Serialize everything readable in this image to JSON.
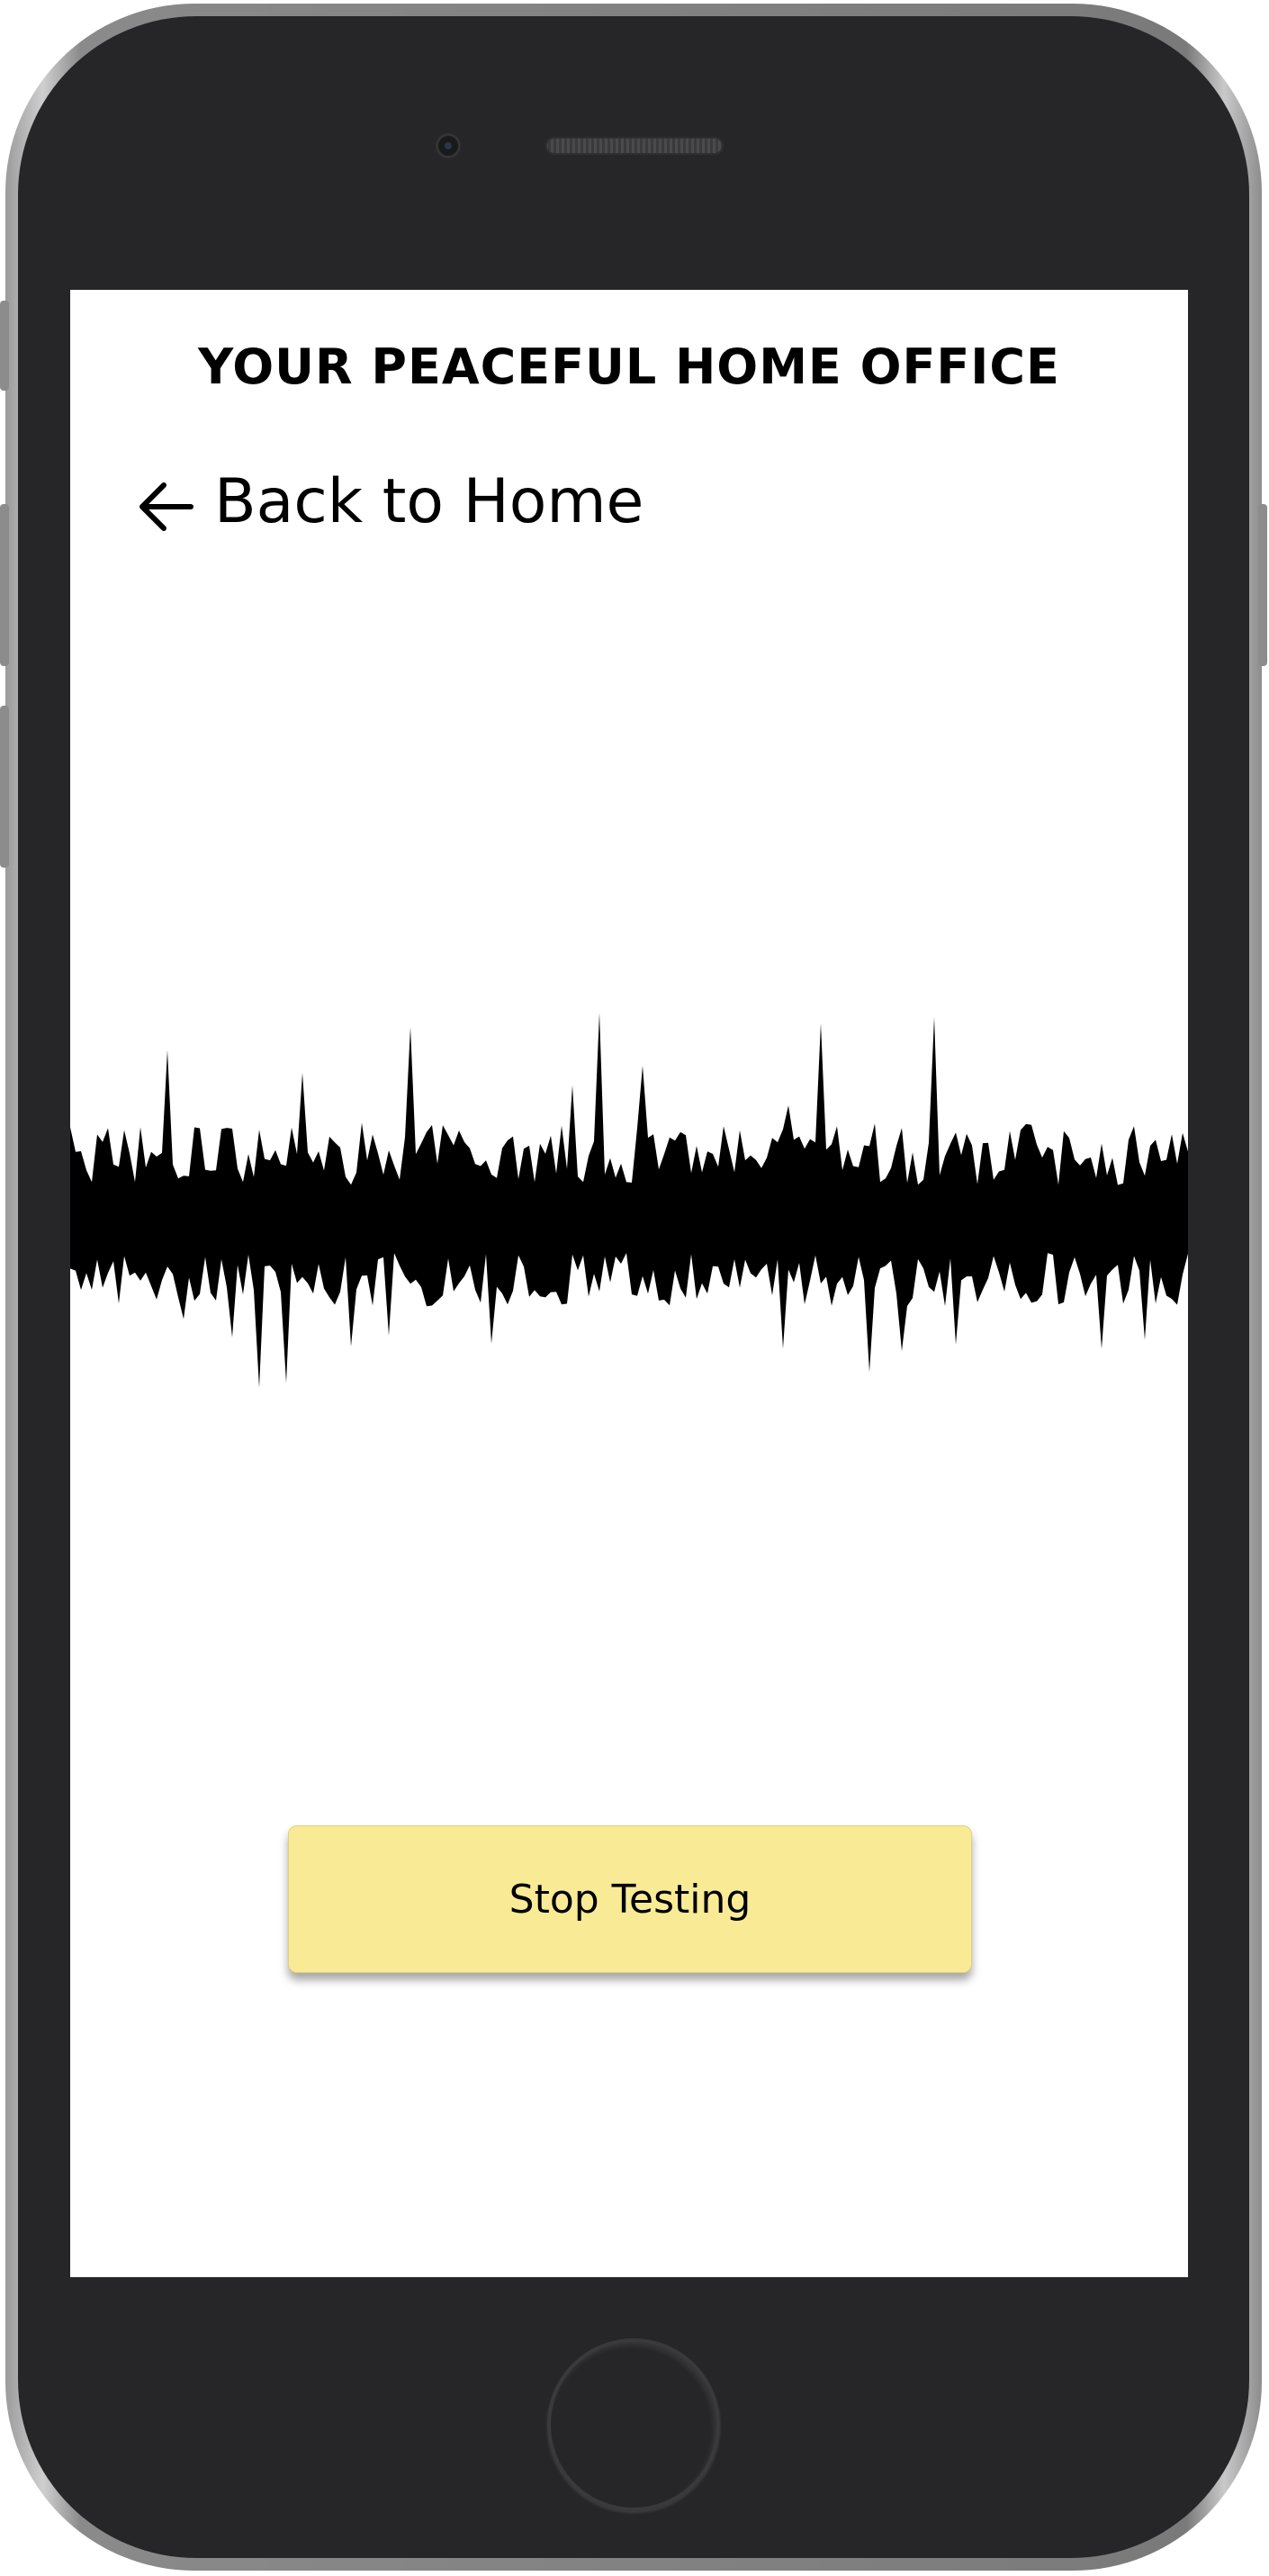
{
  "screen": {
    "title": "YOUR PEACEFUL HOME OFFICE",
    "back_link": {
      "icon": "arrow-left-icon",
      "label": "Back to Home"
    },
    "waveform": {
      "icon": "audio-waveform",
      "color": "#000000"
    },
    "stop_button": {
      "label": "Stop Testing",
      "color": "#f9eb96"
    }
  },
  "device": {
    "frame_color": "#262628",
    "screen_color": "#ffffff"
  }
}
